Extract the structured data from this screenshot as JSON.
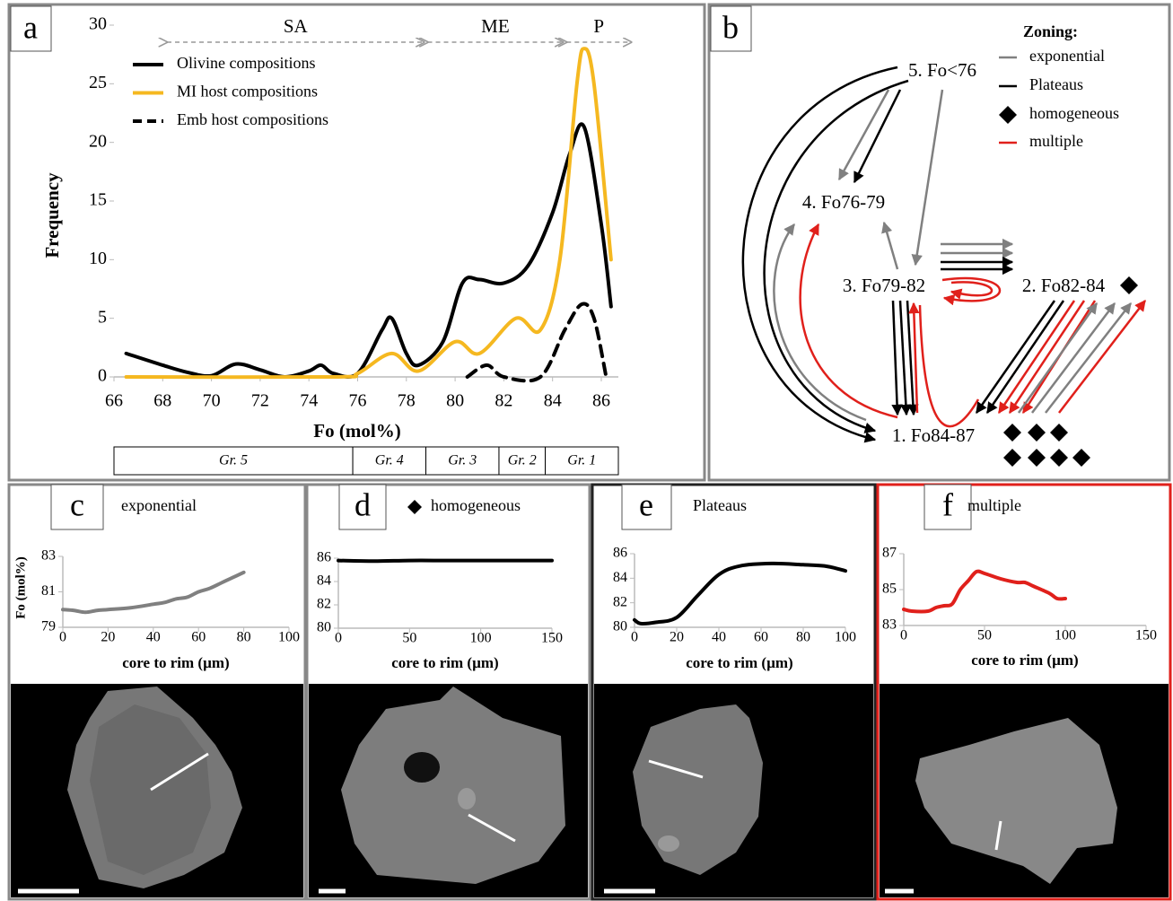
{
  "chart_data": [
    {
      "type": "line",
      "panel": "a",
      "x_label": "Fo (mol%)",
      "y_label": "Frequency",
      "xlim": [
        66,
        86.7
      ],
      "xticks": [
        66,
        68,
        70,
        72,
        74,
        76,
        78,
        80,
        82,
        84,
        86
      ],
      "ylim": [
        0,
        30
      ],
      "yticks": [
        0,
        5,
        10,
        15,
        20,
        25,
        30
      ],
      "series": [
        {
          "name": "Olivine compositions",
          "color": "#000000",
          "style": "solid",
          "x": [
            66.5,
            68,
            69,
            70,
            71,
            72,
            73,
            74,
            74.5,
            75,
            76,
            77,
            77.4,
            78,
            78.5,
            79.5,
            80.3,
            81,
            82,
            83,
            84,
            84.7,
            85.3,
            86,
            86.4
          ],
          "values": [
            2,
            1,
            0.4,
            0.1,
            1.1,
            0.6,
            0,
            0.5,
            1,
            0.3,
            0.3,
            4,
            5,
            2,
            1,
            3,
            8,
            8.3,
            8,
            9.5,
            14,
            19,
            21.3,
            13,
            6
          ]
        },
        {
          "name": "MI host compositions",
          "color": "#f5b820",
          "style": "solid",
          "x": [
            66.5,
            75,
            76,
            77.4,
            78.5,
            80,
            81,
            82.5,
            83.5,
            84.3,
            85,
            85.3,
            85.7,
            86.4
          ],
          "values": [
            0,
            0,
            0.3,
            2,
            0.5,
            3,
            2,
            5,
            4,
            10,
            25,
            28,
            25,
            10
          ]
        },
        {
          "name": "Emb host compositions",
          "color": "#000000",
          "style": "dashed",
          "x": [
            80.5,
            81.3,
            82,
            83.5,
            84.5,
            85.2,
            85.7,
            86.2
          ],
          "values": [
            0,
            1,
            0,
            0,
            4,
            6.2,
            5,
            0
          ]
        }
      ],
      "ranges": [
        {
          "label": "SA",
          "from": 68.1,
          "to": 78.8
        },
        {
          "label": "ME",
          "from": 78.8,
          "to": 84.5
        },
        {
          "label": "P",
          "from": 84.5,
          "to": 87.3
        }
      ],
      "groups": [
        {
          "label": "Gr. 5",
          "from": 66,
          "to": 75.8
        },
        {
          "label": "Gr. 4",
          "from": 75.8,
          "to": 78.8
        },
        {
          "label": "Gr. 3",
          "from": 78.8,
          "to": 81.8
        },
        {
          "label": "Gr. 2",
          "from": 81.8,
          "to": 83.7
        },
        {
          "label": "Gr. 1",
          "from": 83.7,
          "to": 86.7
        }
      ]
    },
    {
      "type": "line",
      "panel": "c",
      "title": "exponential",
      "x_label": "core to rim (µm)",
      "y_label": "Fo (mol%)",
      "xlim": [
        0,
        100
      ],
      "xticks": [
        0,
        20,
        40,
        60,
        80,
        100
      ],
      "ylim": [
        79,
        83
      ],
      "yticks": [
        79,
        81,
        83
      ],
      "series": [
        {
          "color": "#808080",
          "style": "solid",
          "x": [
            0,
            5,
            10,
            15,
            20,
            30,
            40,
            45,
            50,
            55,
            60,
            65,
            70,
            75,
            80
          ],
          "values": [
            80,
            79.95,
            79.85,
            79.95,
            80,
            80.1,
            80.3,
            80.4,
            80.6,
            80.7,
            81,
            81.2,
            81.5,
            81.8,
            82.1
          ]
        }
      ]
    },
    {
      "type": "line",
      "panel": "d",
      "title": "homogeneous",
      "x_label": "core to rim (µm)",
      "xlim": [
        0,
        150
      ],
      "xticks": [
        0,
        50,
        100,
        150
      ],
      "ylim": [
        80,
        86
      ],
      "yticks": [
        80,
        82,
        84,
        86
      ],
      "series": [
        {
          "color": "#000000",
          "style": "solid",
          "x": [
            0,
            25,
            50,
            75,
            100,
            125,
            150
          ],
          "values": [
            85.8,
            85.75,
            85.8,
            85.8,
            85.8,
            85.8,
            85.8
          ]
        }
      ]
    },
    {
      "type": "line",
      "panel": "e",
      "title": "Plateaus",
      "x_label": "core to rim (µm)",
      "xlim": [
        0,
        100
      ],
      "xticks": [
        0,
        20,
        40,
        60,
        80,
        100
      ],
      "ylim": [
        80,
        86
      ],
      "yticks": [
        80,
        82,
        84,
        86
      ],
      "series": [
        {
          "color": "#000000",
          "style": "solid",
          "x": [
            0,
            3,
            10,
            20,
            30,
            40,
            50,
            65,
            80,
            90,
            98,
            100
          ],
          "values": [
            80.6,
            80.3,
            80.4,
            80.8,
            82.6,
            84.3,
            85,
            85.2,
            85.1,
            85,
            84.7,
            84.6
          ]
        }
      ]
    },
    {
      "type": "line",
      "panel": "f",
      "title": "multiple",
      "x_label": "core to rim (µm)",
      "xlim": [
        0,
        150
      ],
      "xticks": [
        0,
        50,
        100,
        150
      ],
      "ylim": [
        83,
        87
      ],
      "yticks": [
        83,
        85,
        87
      ],
      "series": [
        {
          "color": "#e0201b",
          "style": "solid",
          "x": [
            0,
            5,
            15,
            20,
            25,
            30,
            35,
            40,
            45,
            50,
            60,
            70,
            75,
            80,
            90,
            95,
            100
          ],
          "values": [
            83.9,
            83.8,
            83.8,
            84,
            84.1,
            84.2,
            85,
            85.5,
            86,
            85.9,
            85.6,
            85.4,
            85.4,
            85.2,
            84.8,
            84.5,
            84.5
          ]
        }
      ]
    }
  ],
  "diagram": {
    "panel": "b",
    "legend_title": "Zoning:",
    "legend": [
      "exponential",
      "Plateaus",
      "homogeneous",
      "multiple"
    ],
    "nodes": [
      "5. Fo<76",
      "4. Fo76-79",
      "3. Fo79-82",
      "2. Fo82-84",
      "1. Fo84-87"
    ]
  }
}
